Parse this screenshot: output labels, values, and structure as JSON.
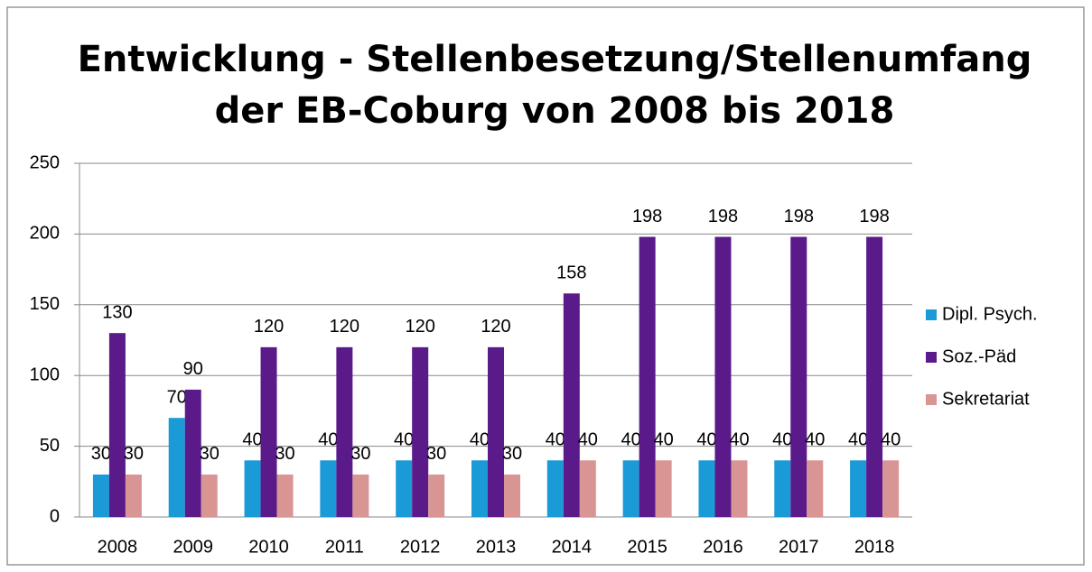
{
  "chart_data": {
    "type": "bar",
    "title": [
      "Entwicklung - Stellenbesetzung/Stellenumfang",
      "der EB-Coburg von 2008 bis 2018"
    ],
    "categories": [
      "2008",
      "2009",
      "2010",
      "2011",
      "2012",
      "2013",
      "2014",
      "2015",
      "2016",
      "2017",
      "2018"
    ],
    "series": [
      {
        "name": "Dipl. Psych.",
        "color": "#1a9ad6",
        "values": [
          30,
          70,
          40,
          40,
          40,
          40,
          40,
          40,
          40,
          40,
          40
        ]
      },
      {
        "name": "Soz.-Päd",
        "color": "#5b1a8a",
        "values": [
          130,
          90,
          120,
          120,
          120,
          120,
          158,
          198,
          198,
          198,
          198
        ]
      },
      {
        "name": "Sekretariat",
        "color": "#d99594",
        "values": [
          30,
          30,
          30,
          30,
          30,
          30,
          40,
          40,
          40,
          40,
          40
        ]
      }
    ],
    "ylim": [
      0,
      250
    ],
    "yticks": [
      0,
      50,
      100,
      150,
      200,
      250
    ],
    "grid": true,
    "legend": "right"
  }
}
